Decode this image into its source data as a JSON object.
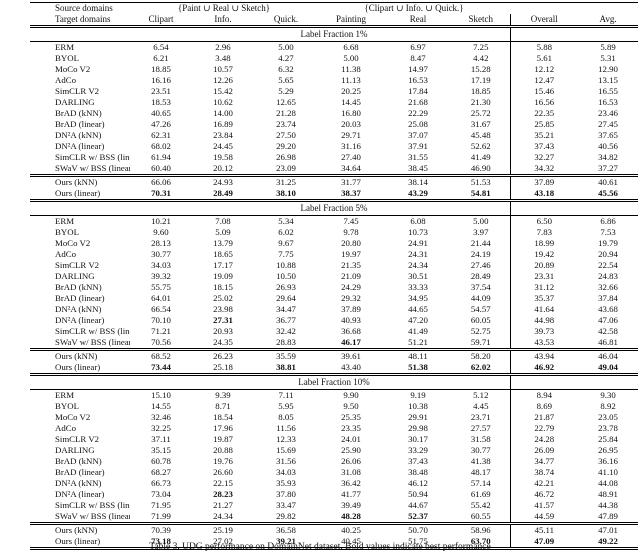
{
  "table": {
    "header": {
      "source_label": "Source domains",
      "target_label": "Target domains",
      "groups": [
        {
          "label": "{Paint ∪ Real ∪ Sketch}",
          "span": 3
        },
        {
          "label": "{Clipart ∪ Info. ∪ Quick.}",
          "span": 3
        }
      ],
      "columns": [
        "Clipart",
        "Info.",
        "Quick.",
        "Painting",
        "Real",
        "Sketch",
        "Overall",
        "Avg."
      ]
    },
    "sections": [
      {
        "title": "Label Fraction 1%",
        "rows": [
          {
            "method": "ERM",
            "values": [
              "6.54",
              "2.96",
              "5.00",
              "6.68",
              "6.97",
              "7.25",
              "5.88",
              "5.89"
            ],
            "bold": [],
            "group": "baseline"
          },
          {
            "method": "BYOL",
            "values": [
              "6.21",
              "3.48",
              "4.27",
              "5.00",
              "8.47",
              "4.42",
              "5.61",
              "5.31"
            ],
            "bold": [],
            "group": "baseline"
          },
          {
            "method": "MoCo V2",
            "values": [
              "18.85",
              "10.57",
              "6.32",
              "11.38",
              "14.97",
              "15.28",
              "12.12",
              "12.90"
            ],
            "bold": [],
            "group": "baseline"
          },
          {
            "method": "AdCo",
            "values": [
              "16.16",
              "12.26",
              "5.65",
              "11.13",
              "16.53",
              "17.19",
              "12.47",
              "13.15"
            ],
            "bold": [],
            "group": "baseline"
          },
          {
            "method": "SimCLR V2",
            "values": [
              "23.51",
              "15.42",
              "5.29",
              "20.25",
              "17.84",
              "18.85",
              "15.46",
              "16.55"
            ],
            "bold": [],
            "group": "baseline"
          },
          {
            "method": "DARLING",
            "values": [
              "18.53",
              "10.62",
              "12.65",
              "14.45",
              "21.68",
              "21.30",
              "16.56",
              "16.53"
            ],
            "bold": [],
            "group": "baseline"
          },
          {
            "method": "BrAD (kNN)",
            "values": [
              "40.65",
              "14.00",
              "21.28",
              "16.80",
              "22.29",
              "25.72",
              "22.35",
              "23.46"
            ],
            "bold": [],
            "group": "baseline"
          },
          {
            "method": "BrAD (linear)",
            "values": [
              "47.26",
              "16.89",
              "23.74",
              "20.03",
              "25.08",
              "31.67",
              "25.85",
              "27.45"
            ],
            "bold": [],
            "group": "baseline"
          },
          {
            "method": "DN²A (kNN)",
            "values": [
              "62.31",
              "23.84",
              "27.50",
              "29.71",
              "37.07",
              "45.48",
              "35.21",
              "37.65"
            ],
            "bold": [],
            "group": "baseline"
          },
          {
            "method": "DN²A (linear)",
            "values": [
              "68.02",
              "24.45",
              "29.20",
              "31.16",
              "37.91",
              "52.62",
              "37.43",
              "40.56"
            ],
            "bold": [],
            "group": "baseline"
          },
          {
            "method": "SimCLR w/ BSS (linear)",
            "values": [
              "61.94",
              "19.58",
              "26.98",
              "27.40",
              "31.55",
              "41.49",
              "32.27",
              "34.82"
            ],
            "bold": [],
            "group": "baseline"
          },
          {
            "method": "SWaV w/ BSS (linear)",
            "values": [
              "60.40",
              "20.12",
              "23.09",
              "34.64",
              "38.45",
              "46.90",
              "34.32",
              "37.27"
            ],
            "bold": [],
            "group": "baseline"
          },
          {
            "method": "Ours (kNN)",
            "values": [
              "66.06",
              "24.93",
              "31.25",
              "31.77",
              "38.14",
              "51.53",
              "37.89",
              "40.61"
            ],
            "bold": [],
            "group": "ours"
          },
          {
            "method": "Ours (linear)",
            "values": [
              "70.31",
              "28.49",
              "38.10",
              "38.37",
              "43.29",
              "54.81",
              "43.18",
              "45.56"
            ],
            "bold": [
              0,
              1,
              2,
              3,
              4,
              5,
              6,
              7
            ],
            "group": "ours"
          }
        ]
      },
      {
        "title": "Label Fraction 5%",
        "rows": [
          {
            "method": "ERM",
            "values": [
              "10.21",
              "7.08",
              "5.34",
              "7.45",
              "6.08",
              "5.00",
              "6.50",
              "6.86"
            ],
            "bold": [],
            "group": "baseline"
          },
          {
            "method": "BYOL",
            "values": [
              "9.60",
              "5.09",
              "6.02",
              "9.78",
              "10.73",
              "3.97",
              "7.83",
              "7.53"
            ],
            "bold": [],
            "group": "baseline"
          },
          {
            "method": "MoCo V2",
            "values": [
              "28.13",
              "13.79",
              "9.67",
              "20.80",
              "24.91",
              "21.44",
              "18.99",
              "19.79"
            ],
            "bold": [],
            "group": "baseline"
          },
          {
            "method": "AdCo",
            "values": [
              "30.77",
              "18.65",
              "7.75",
              "19.97",
              "24.31",
              "24.19",
              "19.42",
              "20.94"
            ],
            "bold": [],
            "group": "baseline"
          },
          {
            "method": "SimCLR V2",
            "values": [
              "34.03",
              "17.17",
              "10.88",
              "21.35",
              "24.34",
              "27.46",
              "20.89",
              "22.54"
            ],
            "bold": [],
            "group": "baseline"
          },
          {
            "method": "DARLING",
            "values": [
              "39.32",
              "19.09",
              "10.50",
              "21.09",
              "30.51",
              "28.49",
              "23.31",
              "24.83"
            ],
            "bold": [],
            "group": "baseline"
          },
          {
            "method": "BrAD (kNN)",
            "values": [
              "55.75",
              "18.15",
              "26.93",
              "24.29",
              "33.33",
              "37.54",
              "31.12",
              "32.66"
            ],
            "bold": [],
            "group": "baseline"
          },
          {
            "method": "BrAD (linear)",
            "values": [
              "64.01",
              "25.02",
              "29.64",
              "29.32",
              "34.95",
              "44.09",
              "35.37",
              "37.84"
            ],
            "bold": [],
            "group": "baseline"
          },
          {
            "method": "DN²A (kNN)",
            "values": [
              "66.54",
              "23.98",
              "34.47",
              "37.89",
              "44.65",
              "54.57",
              "41.64",
              "43.68"
            ],
            "bold": [],
            "group": "baseline"
          },
          {
            "method": "DN²A (linear)",
            "values": [
              "70.10",
              "27.31",
              "36.77",
              "40.93",
              "47.20",
              "60.05",
              "44.98",
              "47.06"
            ],
            "bold": [
              1
            ],
            "group": "baseline"
          },
          {
            "method": "SimCLR w/ BSS (linear)",
            "values": [
              "71.21",
              "20.93",
              "32.42",
              "36.68",
              "41.49",
              "52.75",
              "39.73",
              "42.58"
            ],
            "bold": [],
            "group": "baseline"
          },
          {
            "method": "SWaV w/ BSS (linear)",
            "values": [
              "70.56",
              "24.35",
              "28.83",
              "46.17",
              "51.21",
              "59.71",
              "43.53",
              "46.81"
            ],
            "bold": [
              3
            ],
            "group": "baseline"
          },
          {
            "method": "Ours (kNN)",
            "values": [
              "68.52",
              "26.23",
              "35.59",
              "39.61",
              "48.11",
              "58.20",
              "43.94",
              "46.04"
            ],
            "bold": [],
            "group": "ours"
          },
          {
            "method": "Ours (linear)",
            "values": [
              "73.44",
              "25.18",
              "38.81",
              "43.40",
              "51.38",
              "62.02",
              "46.92",
              "49.04"
            ],
            "bold": [
              0,
              2,
              4,
              5,
              6,
              7
            ],
            "group": "ours"
          }
        ]
      },
      {
        "title": "Label Fraction 10%",
        "rows": [
          {
            "method": "ERM",
            "values": [
              "15.10",
              "9.39",
              "7.11",
              "9.90",
              "9.19",
              "5.12",
              "8.94",
              "9.30"
            ],
            "bold": [],
            "group": "baseline"
          },
          {
            "method": "BYOL",
            "values": [
              "14.55",
              "8.71",
              "5.95",
              "9.50",
              "10.38",
              "4.45",
              "8.69",
              "8.92"
            ],
            "bold": [],
            "group": "baseline"
          },
          {
            "method": "MoCo V2",
            "values": [
              "32.46",
              "18.54",
              "8.05",
              "25.35",
              "29.91",
              "23.71",
              "21.87",
              "23.05"
            ],
            "bold": [],
            "group": "baseline"
          },
          {
            "method": "AdCo",
            "values": [
              "32.25",
              "17.96",
              "11.56",
              "23.35",
              "29.98",
              "27.57",
              "22.79",
              "23.78"
            ],
            "bold": [],
            "group": "baseline"
          },
          {
            "method": "SimCLR V2",
            "values": [
              "37.11",
              "19.87",
              "12.33",
              "24.01",
              "30.17",
              "31.58",
              "24.28",
              "25.84"
            ],
            "bold": [],
            "group": "baseline"
          },
          {
            "method": "DARLING",
            "values": [
              "35.15",
              "20.88",
              "15.69",
              "25.90",
              "33.29",
              "30.77",
              "26.09",
              "26.95"
            ],
            "bold": [],
            "group": "baseline"
          },
          {
            "method": "BrAD (kNN)",
            "values": [
              "60.78",
              "19.76",
              "31.56",
              "26.06",
              "37.43",
              "41.38",
              "34.77",
              "36.16"
            ],
            "bold": [],
            "group": "baseline"
          },
          {
            "method": "BrAD (linear)",
            "values": [
              "68.27",
              "26.60",
              "34.03",
              "31.08",
              "38.48",
              "48.17",
              "38.74",
              "41.10"
            ],
            "bold": [],
            "group": "baseline"
          },
          {
            "method": "DN²A (kNN)",
            "values": [
              "66.73",
              "22.15",
              "35.93",
              "36.42",
              "46.12",
              "57.14",
              "42.21",
              "44.08"
            ],
            "bold": [],
            "group": "baseline"
          },
          {
            "method": "DN²A (linear)",
            "values": [
              "73.04",
              "28.23",
              "37.80",
              "41.77",
              "50.94",
              "61.69",
              "46.72",
              "48.91"
            ],
            "bold": [
              1
            ],
            "group": "baseline"
          },
          {
            "method": "SimCLR w/ BSS (linear)",
            "values": [
              "71.95",
              "21.27",
              "33.47",
              "39.49",
              "44.67",
              "55.42",
              "41.57",
              "44.38"
            ],
            "bold": [],
            "group": "baseline"
          },
          {
            "method": "SWaV w/ BSS (linear)",
            "values": [
              "71.99",
              "24.34",
              "29.82",
              "48.28",
              "52.37",
              "60.55",
              "44.59",
              "47.89"
            ],
            "bold": [
              3,
              4
            ],
            "group": "baseline"
          },
          {
            "method": "Ours (kNN)",
            "values": [
              "70.39",
              "25.19",
              "36.58",
              "40.25",
              "50.70",
              "58.96",
              "45.11",
              "47.01"
            ],
            "bold": [],
            "group": "ours"
          },
          {
            "method": "Ours (linear)",
            "values": [
              "73.18",
              "27.02",
              "39.21",
              "40.45",
              "51.75",
              "63.70",
              "47.09",
              "49.22"
            ],
            "bold": [
              0,
              2,
              5,
              6,
              7
            ],
            "group": "ours"
          }
        ]
      }
    ]
  },
  "caption": "Table 3. UDG performance on DomainNet dataset. Bold values indicate best performance"
}
